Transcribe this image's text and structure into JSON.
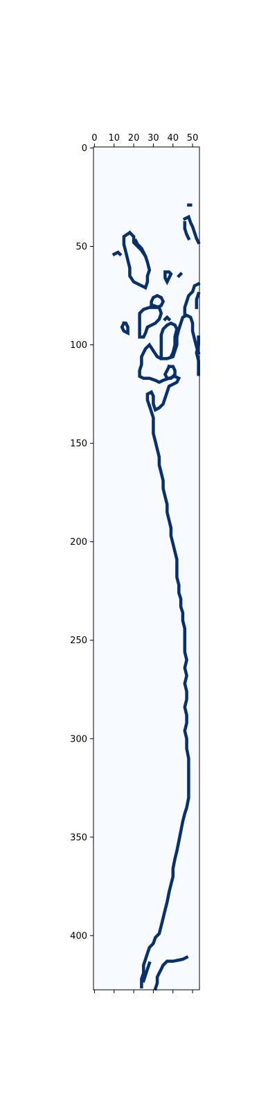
{
  "chart_data": {
    "type": "heatmap",
    "title": "",
    "xlabel": "",
    "ylabel": "",
    "x_ticks": [
      0,
      10,
      20,
      30,
      40,
      50
    ],
    "y_ticks": [
      0,
      50,
      100,
      150,
      200,
      250,
      300,
      350,
      400
    ],
    "x_axis_position": "top",
    "xlim": [
      -0.5,
      53.5
    ],
    "ylim": [
      427.5,
      -0.5
    ],
    "grid": false,
    "colormap": "Blues",
    "colors": {
      "background": "#f7fbff",
      "foreground": "#08306b",
      "frame": "#000000"
    },
    "contour_segments": [
      {
        "name": "main-trace",
        "points": [
          [
            47,
            411
          ],
          [
            45,
            412
          ],
          [
            40,
            413
          ],
          [
            37,
            413
          ],
          [
            35,
            415
          ],
          [
            34,
            417
          ],
          [
            33,
            419
          ],
          [
            32,
            421
          ],
          [
            32,
            424
          ],
          [
            31,
            427
          ]
        ]
      },
      {
        "name": "spine",
        "points": [
          [
            24,
            426
          ],
          [
            24,
            422
          ],
          [
            25,
            419
          ],
          [
            25,
            415
          ],
          [
            26,
            412
          ],
          [
            27,
            409
          ],
          [
            28,
            406
          ],
          [
            30,
            404
          ],
          [
            31,
            401
          ],
          [
            33,
            399
          ],
          [
            34,
            395
          ],
          [
            35,
            391
          ],
          [
            36,
            387
          ],
          [
            37,
            383
          ],
          [
            38,
            378
          ],
          [
            39,
            374
          ],
          [
            40,
            370
          ],
          [
            40,
            366
          ],
          [
            41,
            361
          ],
          [
            42,
            357
          ],
          [
            43,
            352
          ],
          [
            44,
            347
          ],
          [
            45,
            342
          ],
          [
            46,
            338
          ],
          [
            47,
            335
          ],
          [
            48,
            330
          ],
          [
            48,
            325
          ],
          [
            48,
            320
          ],
          [
            48,
            315
          ],
          [
            48,
            310
          ],
          [
            47,
            305
          ],
          [
            47,
            300
          ],
          [
            46,
            296
          ],
          [
            47,
            292
          ],
          [
            47,
            288
          ],
          [
            46,
            284
          ],
          [
            47,
            280
          ],
          [
            47,
            276
          ],
          [
            46,
            272
          ],
          [
            47,
            268
          ],
          [
            46,
            264
          ],
          [
            47,
            260
          ],
          [
            46,
            256
          ],
          [
            46,
            252
          ],
          [
            46,
            248
          ],
          [
            46,
            244
          ],
          [
            45,
            240
          ],
          [
            45,
            236
          ],
          [
            44,
            233
          ],
          [
            44,
            229
          ],
          [
            43,
            226
          ],
          [
            43,
            222
          ],
          [
            42,
            218
          ],
          [
            42,
            213
          ],
          [
            42,
            209
          ],
          [
            41,
            205
          ],
          [
            40,
            201
          ],
          [
            39,
            197
          ],
          [
            39,
            193
          ],
          [
            38,
            189
          ],
          [
            37,
            185
          ],
          [
            37,
            181
          ],
          [
            36,
            177
          ],
          [
            35,
            173
          ],
          [
            35,
            169
          ],
          [
            34,
            165
          ],
          [
            33,
            161
          ],
          [
            33,
            157
          ],
          [
            32,
            153
          ],
          [
            31,
            149
          ],
          [
            30,
            145
          ],
          [
            30,
            141
          ],
          [
            30,
            137
          ],
          [
            29,
            134
          ],
          [
            28,
            131
          ]
        ]
      },
      {
        "name": "lower-blob",
        "points": [
          [
            28,
            131
          ],
          [
            27,
            128
          ],
          [
            27,
            125
          ],
          [
            29,
            124
          ],
          [
            30,
            126
          ],
          [
            30,
            130
          ],
          [
            31,
            133
          ],
          [
            33,
            132
          ],
          [
            35,
            130
          ],
          [
            36,
            127
          ],
          [
            37,
            124
          ],
          [
            38,
            121
          ],
          [
            40,
            120
          ],
          [
            42,
            119
          ],
          [
            43,
            117
          ],
          [
            41,
            116
          ],
          [
            38,
            117
          ],
          [
            35,
            118
          ],
          [
            33,
            119
          ],
          [
            31,
            118
          ],
          [
            28,
            117
          ],
          [
            25,
            117
          ],
          [
            23,
            116
          ],
          [
            23,
            113
          ],
          [
            24,
            110
          ],
          [
            24,
            106
          ],
          [
            26,
            102
          ],
          [
            28,
            100
          ],
          [
            30,
            103
          ],
          [
            32,
            106
          ],
          [
            34,
            107
          ],
          [
            37,
            107
          ],
          [
            40,
            106
          ],
          [
            41,
            103
          ],
          [
            42,
            100
          ],
          [
            42,
            96
          ],
          [
            43,
            92
          ],
          [
            44,
            89
          ],
          [
            45,
            86
          ],
          [
            47,
            85
          ],
          [
            49,
            86
          ],
          [
            50,
            89
          ],
          [
            50,
            93
          ],
          [
            51,
            97
          ],
          [
            52,
            101
          ],
          [
            53,
            104
          ]
        ]
      },
      {
        "name": "inner-blob",
        "points": [
          [
            34,
            107
          ],
          [
            34,
            103
          ],
          [
            34,
            99
          ],
          [
            34,
            95
          ],
          [
            35,
            92
          ],
          [
            37,
            90
          ],
          [
            39,
            89
          ],
          [
            41,
            90
          ],
          [
            42,
            92
          ],
          [
            41,
            96
          ],
          [
            41,
            100
          ],
          [
            40,
            104
          ],
          [
            39,
            106
          ]
        ]
      },
      {
        "name": "small-loop",
        "points": [
          [
            38,
            111
          ],
          [
            37,
            113
          ],
          [
            36,
            115
          ],
          [
            37,
            117
          ],
          [
            39,
            117
          ],
          [
            41,
            115
          ],
          [
            41,
            113
          ],
          [
            40,
            111
          ],
          [
            38,
            111
          ]
        ]
      },
      {
        "name": "mid-left-blob",
        "points": [
          [
            23,
            96
          ],
          [
            23,
            92
          ],
          [
            23,
            88
          ],
          [
            23,
            84
          ],
          [
            25,
            82
          ],
          [
            28,
            81
          ],
          [
            30,
            80
          ],
          [
            33,
            81
          ],
          [
            34,
            84
          ],
          [
            33,
            87
          ],
          [
            31,
            89
          ],
          [
            29,
            90
          ],
          [
            27,
            91
          ],
          [
            26,
            94
          ],
          [
            25,
            96
          ],
          [
            23,
            96
          ]
        ]
      },
      {
        "name": "mid-right-stub",
        "points": [
          [
            36,
            87
          ],
          [
            37,
            86
          ],
          [
            38,
            87
          ]
        ]
      },
      {
        "name": "small-circle",
        "points": [
          [
            29,
            81
          ],
          [
            29,
            78
          ],
          [
            30,
            76
          ],
          [
            32,
            75
          ],
          [
            34,
            76
          ],
          [
            35,
            78
          ],
          [
            34,
            80
          ],
          [
            32,
            81
          ],
          [
            29,
            81
          ]
        ]
      },
      {
        "name": "far-left-loop",
        "points": [
          [
            15,
            89
          ],
          [
            14,
            91
          ],
          [
            15,
            93
          ],
          [
            17,
            94
          ],
          [
            17,
            91
          ],
          [
            16,
            89
          ],
          [
            15,
            89
          ]
        ]
      },
      {
        "name": "upper-left-blob",
        "points": [
          [
            18,
            43
          ],
          [
            15,
            45
          ],
          [
            15,
            49
          ],
          [
            16,
            53
          ],
          [
            17,
            57
          ],
          [
            18,
            61
          ],
          [
            18,
            65
          ],
          [
            20,
            68
          ],
          [
            22,
            69
          ],
          [
            24,
            70
          ],
          [
            26,
            71
          ],
          [
            27,
            68
          ],
          [
            27,
            65
          ],
          [
            28,
            62
          ],
          [
            27,
            58
          ],
          [
            26,
            55
          ],
          [
            24,
            52
          ],
          [
            22,
            50
          ],
          [
            20,
            48
          ],
          [
            20,
            45
          ],
          [
            18,
            43
          ]
        ]
      },
      {
        "name": "upper-inner-line",
        "points": [
          [
            21,
            47
          ],
          [
            22,
            49
          ],
          [
            24,
            51
          ],
          [
            25,
            53
          ],
          [
            26,
            55
          ]
        ]
      },
      {
        "name": "upper-mid-spot",
        "points": [
          [
            36,
            63
          ],
          [
            36,
            66
          ],
          [
            37,
            68
          ],
          [
            38,
            66
          ],
          [
            39,
            64
          ],
          [
            38,
            63
          ],
          [
            36,
            63
          ]
        ]
      },
      {
        "name": "upper-mid-dash",
        "points": [
          [
            43,
            65
          ],
          [
            44,
            64
          ]
        ]
      },
      {
        "name": "left-dash",
        "points": [
          [
            10,
            54
          ],
          [
            12,
            53
          ],
          [
            13,
            54
          ]
        ]
      },
      {
        "name": "right-edge-top",
        "points": [
          [
            46,
            36
          ],
          [
            48,
            35
          ],
          [
            49,
            38
          ],
          [
            50,
            40
          ],
          [
            51,
            43
          ],
          [
            52,
            46
          ],
          [
            53,
            48
          ]
        ]
      },
      {
        "name": "right-edge-top-inner",
        "points": [
          [
            46,
            38
          ],
          [
            46,
            41
          ],
          [
            47,
            44
          ],
          [
            48,
            46
          ]
        ]
      },
      {
        "name": "right-edge-dash",
        "points": [
          [
            48,
            29
          ],
          [
            49,
            29
          ]
        ]
      },
      {
        "name": "right-edge-mid",
        "points": [
          [
            53,
            69
          ],
          [
            51,
            70
          ],
          [
            50,
            73
          ],
          [
            48,
            75
          ],
          [
            47,
            78
          ],
          [
            46,
            81
          ],
          [
            46,
            85
          ]
        ]
      },
      {
        "name": "right-edge-mid-2",
        "points": [
          [
            53,
            74
          ],
          [
            52,
            77
          ],
          [
            52,
            81
          ]
        ]
      },
      {
        "name": "right-edge-low",
        "points": [
          [
            53,
            96
          ],
          [
            53,
            100
          ],
          [
            52,
            104
          ],
          [
            53,
            108
          ],
          [
            53,
            112
          ],
          [
            53,
            115
          ]
        ]
      },
      {
        "name": "lower-right-tail",
        "points": [
          [
            25,
            423
          ],
          [
            26,
            420
          ],
          [
            27,
            417
          ],
          [
            28,
            414
          ]
        ]
      }
    ]
  }
}
